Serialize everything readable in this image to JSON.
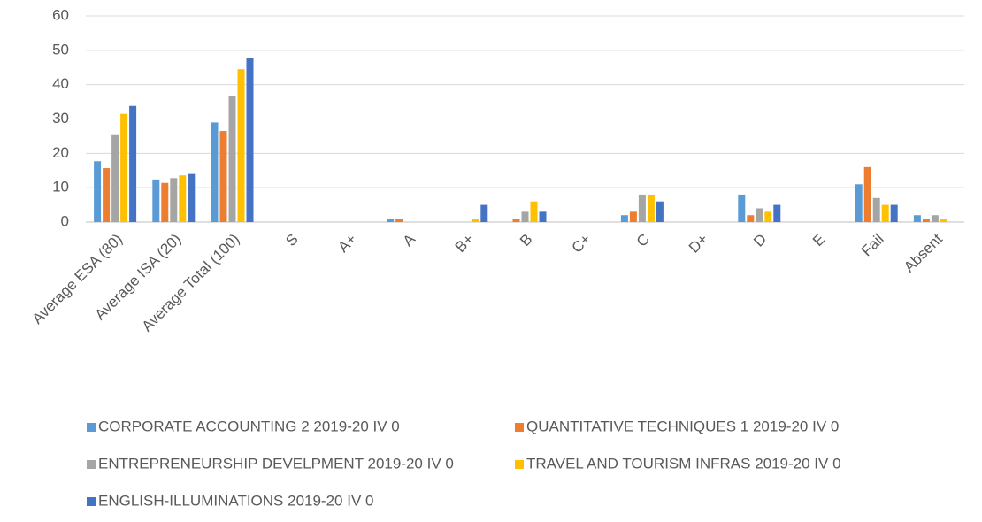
{
  "chart_data": {
    "type": "bar",
    "categories": [
      "Average ESA (80)",
      "Average ISA (20)",
      "Average Total (100)",
      "S",
      "A+",
      "A",
      "B+",
      "B",
      "C+",
      "C",
      "D+",
      "D",
      "E",
      "Fail",
      "Absent"
    ],
    "series": [
      {
        "name": "CORPORATE ACCOUNTING 2 2019-20 IV 0",
        "color": "#5B9BD5",
        "values": [
          17.7,
          12.4,
          29,
          0,
          0,
          1,
          0,
          0,
          0,
          2,
          0,
          8,
          0,
          11,
          2
        ]
      },
      {
        "name": "QUANTITATIVE TECHNIQUES 1 2019-20 IV 0",
        "color": "#ED7D31",
        "values": [
          15.7,
          11.4,
          26.5,
          0,
          0,
          1,
          0,
          1,
          0,
          3,
          0,
          2,
          0,
          16,
          1
        ]
      },
      {
        "name": "ENTREPRENEURSHIP DEVELPMENT 2019-20 IV 0",
        "color": "#A5A5A5",
        "values": [
          25.3,
          12.8,
          36.8,
          0,
          0,
          0,
          0,
          3,
          0,
          8,
          0,
          4,
          0,
          7,
          2
        ]
      },
      {
        "name": "TRAVEL AND TOURISM INFRAS 2019-20 IV 0",
        "color": "#FFC000",
        "values": [
          31.5,
          13.6,
          44.5,
          0,
          0,
          0,
          1,
          6,
          0,
          8,
          0,
          3,
          0,
          5,
          1
        ]
      },
      {
        "name": "ENGLISH-ILLUMINATIONS 2019-20 IV 0",
        "color": "#4472C4",
        "values": [
          33.8,
          14.0,
          47.9,
          0,
          0,
          0,
          5,
          3,
          0,
          6,
          0,
          5,
          0,
          5,
          0
        ]
      }
    ],
    "ylim": [
      0,
      60
    ],
    "yticks": [
      0,
      10,
      20,
      30,
      40,
      50,
      60
    ],
    "grid": true
  }
}
